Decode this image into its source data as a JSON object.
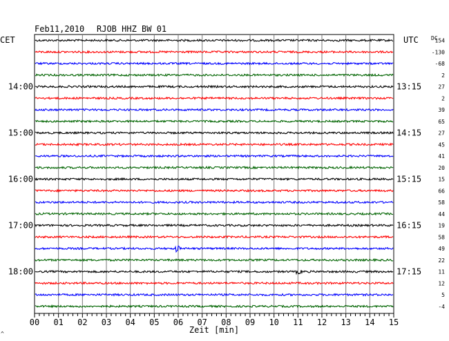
{
  "header": {
    "date": "Feb11,2010",
    "station": "RJOB HHZ BW 01"
  },
  "chart_data": {
    "type": "line",
    "title": "",
    "xlabel": "Zeit [min]",
    "ylabel": "",
    "x_range": [
      0,
      15
    ],
    "x_ticks": [
      "00",
      "01",
      "02",
      "03",
      "04",
      "05",
      "06",
      "07",
      "08",
      "09",
      "10",
      "11",
      "12",
      "13",
      "14",
      "15"
    ],
    "grid": true,
    "left_label": "CET",
    "right_label": "UTC",
    "dc_label": "DC",
    "cet_hours": [
      "14:00",
      "15:00",
      "16:00",
      "17:00",
      "18:00"
    ],
    "utc_hours": [
      "13:15",
      "14:15",
      "15:15",
      "16:15",
      "17:15"
    ],
    "trace_colors": [
      "#000000",
      "#ff0000",
      "#0000ff",
      "#006400"
    ],
    "dc_offsets": [
      "154",
      "-130",
      "-68",
      "2",
      "27",
      "2",
      "39",
      "65",
      "27",
      "45",
      "41",
      "20",
      "15",
      "66",
      "58",
      "44",
      "19",
      "58",
      "49",
      "22",
      "11",
      "12",
      "5",
      "-4"
    ],
    "events": [
      {
        "trace": 18,
        "minute": 5.95,
        "amplitude": 3
      },
      {
        "trace": 20,
        "minute": 11.05,
        "amplitude": 2
      }
    ]
  },
  "footer_mark": "^"
}
